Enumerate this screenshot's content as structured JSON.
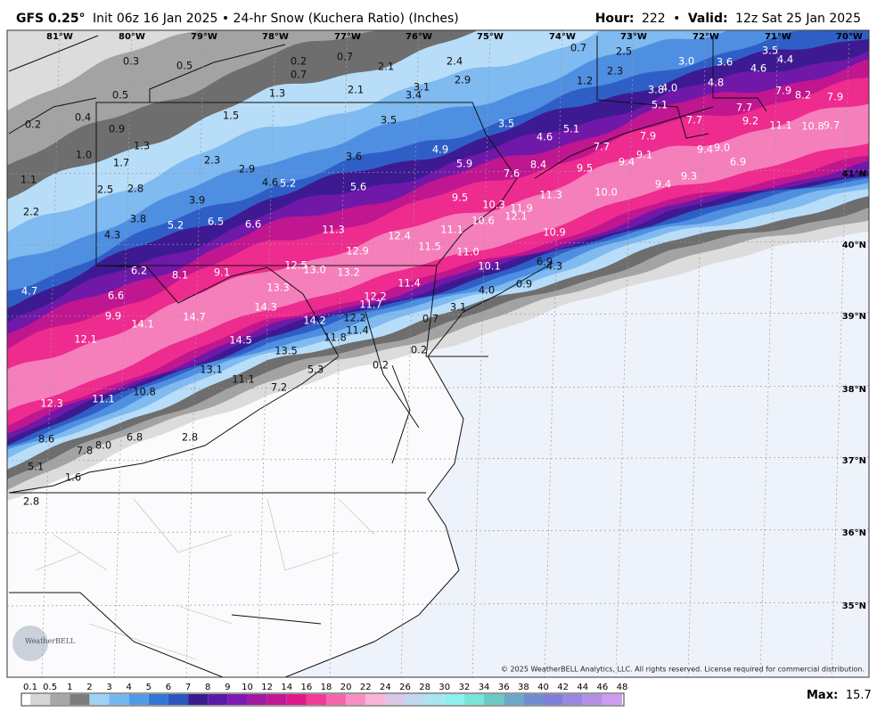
{
  "header": {
    "model": "GFS 0.25°",
    "description": "Init 06z 16 Jan 2025 • 24-hr Snow (Kuchera Ratio) (Inches)",
    "hour_label": "Hour:",
    "hour": 222,
    "separator": "•",
    "valid_label": "Valid:",
    "valid": "12z Sat 25 Jan 2025"
  },
  "map": {
    "longitudes": [
      "81°W",
      "80°W",
      "79°W",
      "78°W",
      "77°W",
      "76°W",
      "75°W",
      "74°W",
      "73°W",
      "72°W",
      "71°W",
      "70°W"
    ],
    "latitudes": [
      "41°N",
      "40°N",
      "39°N",
      "38°N",
      "37°N",
      "36°N",
      "35°N"
    ],
    "values": [
      0.3,
      0.5,
      0.2,
      0.7,
      0.7,
      2.1,
      2.4,
      0.7,
      2.5,
      {
        "value": 3.0,
        "label": "3.0"
      },
      3.6,
      3.5,
      4.4,
      4.6,
      2.3,
      1.2,
      2.9,
      3.1,
      2.1,
      3.4,
      1.3,
      0.5,
      4.8,
      3.8,
      {
        "value": 4.0,
        "label": "4.0"
      },
      7.9,
      8.2,
      7.9,
      5.1,
      7.7,
      1.5,
      0.4,
      0.2,
      0.9,
      3.5,
      3.5,
      7.7,
      9.2,
      11.1,
      10.8,
      9.7,
      4.6,
      5.1,
      7.9,
      1.3,
      {
        "value": 1.0,
        "label": "1.0"
      },
      7.7,
      9.4,
      {
        "value": 9.0,
        "label": "9.0"
      },
      4.9,
      3.6,
      2.3,
      1.7,
      9.1,
      9.4,
      6.9,
      8.4,
      5.9,
      2.9,
      9.5,
      7.6,
      9.3,
      1.1,
      4.6,
      5.2,
      5.6,
      2.5,
      2.8,
      9.4,
      {
        "value": 10.0,
        "label": "10.0"
      },
      11.3,
      3.9,
      9.5,
      10.3,
      11.9,
      2.2,
      12.1,
      3.8,
      10.6,
      5.2,
      6.5,
      6.6,
      11.3,
      11.1,
      10.9,
      12.4,
      4.3,
      11.5,
      12.9,
      {
        "value": 11.0,
        "label": "11.0"
      },
      6.9,
      4.3,
      12.5,
      {
        "value": 13.0,
        "label": "13.0"
      },
      10.1,
      6.2,
      8.1,
      9.1,
      13.2,
      11.4,
      4.7,
      6.6,
      13.3,
      12.2,
      {
        "value": 4.0,
        "label": "4.0"
      },
      0.9,
      11.7,
      14.3,
      3.1,
      9.9,
      14.7,
      14.2,
      12.2,
      14.1,
      0.7,
      11.4,
      12.1,
      14.5,
      11.8,
      13.5,
      0.2,
      0.2,
      13.1,
      5.3,
      11.1,
      7.2,
      10.8,
      11.1,
      12.3,
      2.8,
      6.8,
      8.6,
      {
        "value": 8.0,
        "label": "8.0"
      },
      7.8,
      5.1,
      1.6,
      2.8
    ]
  },
  "legend": {
    "ticks": [
      0.1,
      0.5,
      1,
      2,
      3,
      4,
      5,
      6,
      7,
      8,
      9,
      10,
      12,
      14,
      16,
      18,
      20,
      22,
      24,
      26,
      28,
      30,
      32,
      34,
      36,
      38,
      40,
      42,
      44,
      46,
      48
    ],
    "colors": [
      "#d6d6d6",
      "#a8a8a8",
      "#7c7c7c",
      "#9ed2f7",
      "#74b8f0",
      "#4f9be6",
      "#3377d6",
      "#2a56bd",
      "#3a1c8f",
      "#5a1ba6",
      "#7d1bb0",
      "#a01aa4",
      "#c21794",
      "#e0188a",
      "#f23a98",
      "#f566ad",
      "#f78fc3",
      "#f9b3d6",
      "#d8c8e6",
      "#c0d8f0",
      "#a6e6f5",
      "#8ff0ee",
      "#79e4d8",
      "#6cc9c4",
      "#6aa9c7",
      "#6f8ed0",
      "#7d7fd8",
      "#9a86e0",
      "#b58fe6",
      "#cf9cf0"
    ]
  },
  "copyright": "© 2025 WeatherBELL Analytics, LLC. All rights reserved. License required for commercial distribution.",
  "max_label": "Max:",
  "max": 15.7,
  "logo": "WeatherBELL"
}
